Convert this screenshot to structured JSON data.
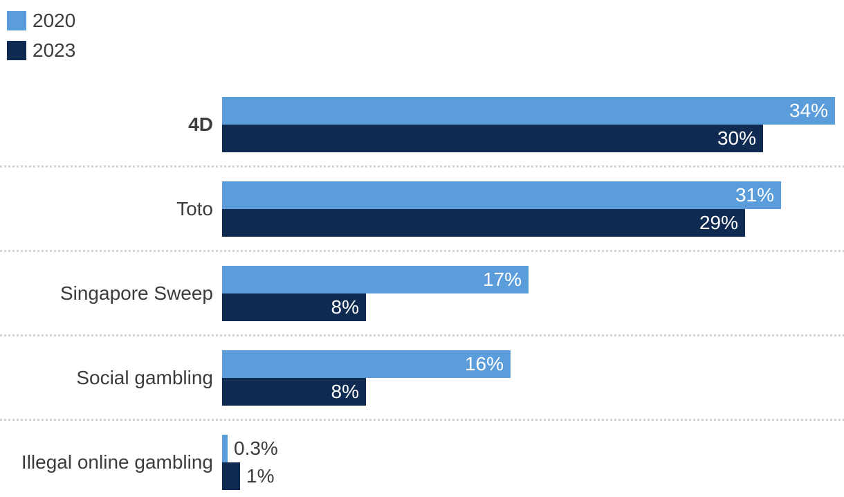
{
  "legend": [
    {
      "label": "2020",
      "color": "#5B9DDA"
    },
    {
      "label": "2023",
      "color": "#0F2B52"
    }
  ],
  "chart_data": {
    "type": "bar",
    "orientation": "horizontal",
    "title": "",
    "xlabel": "",
    "ylabel": "",
    "categories": [
      "4D",
      "Toto",
      "Singapore Sweep",
      "Social gambling",
      "Illegal online gambling"
    ],
    "series": [
      {
        "name": "2020",
        "color": "#5B9DDA",
        "values": [
          34,
          31,
          17,
          16,
          0.3
        ],
        "value_labels": [
          "34%",
          "31%",
          "17%",
          "16%",
          "0.3%"
        ]
      },
      {
        "name": "2023",
        "color": "#0F2B52",
        "values": [
          30,
          29,
          8,
          8,
          1
        ],
        "value_labels": [
          "30%",
          "29%",
          "8%",
          "8%",
          "1%"
        ]
      }
    ],
    "xlim": [
      0,
      34
    ],
    "grid": false,
    "legend_position": "top-left",
    "highlighted_category": "4D",
    "row_separators": "dotted"
  },
  "colors": {
    "series_2020": "#5B9DDA",
    "series_2023": "#0F2B52",
    "label_text": "#3C3C3C",
    "value_text_inside": "#FFFFFF",
    "separator": "#D2D2D2",
    "background": "#FFFFFF"
  }
}
